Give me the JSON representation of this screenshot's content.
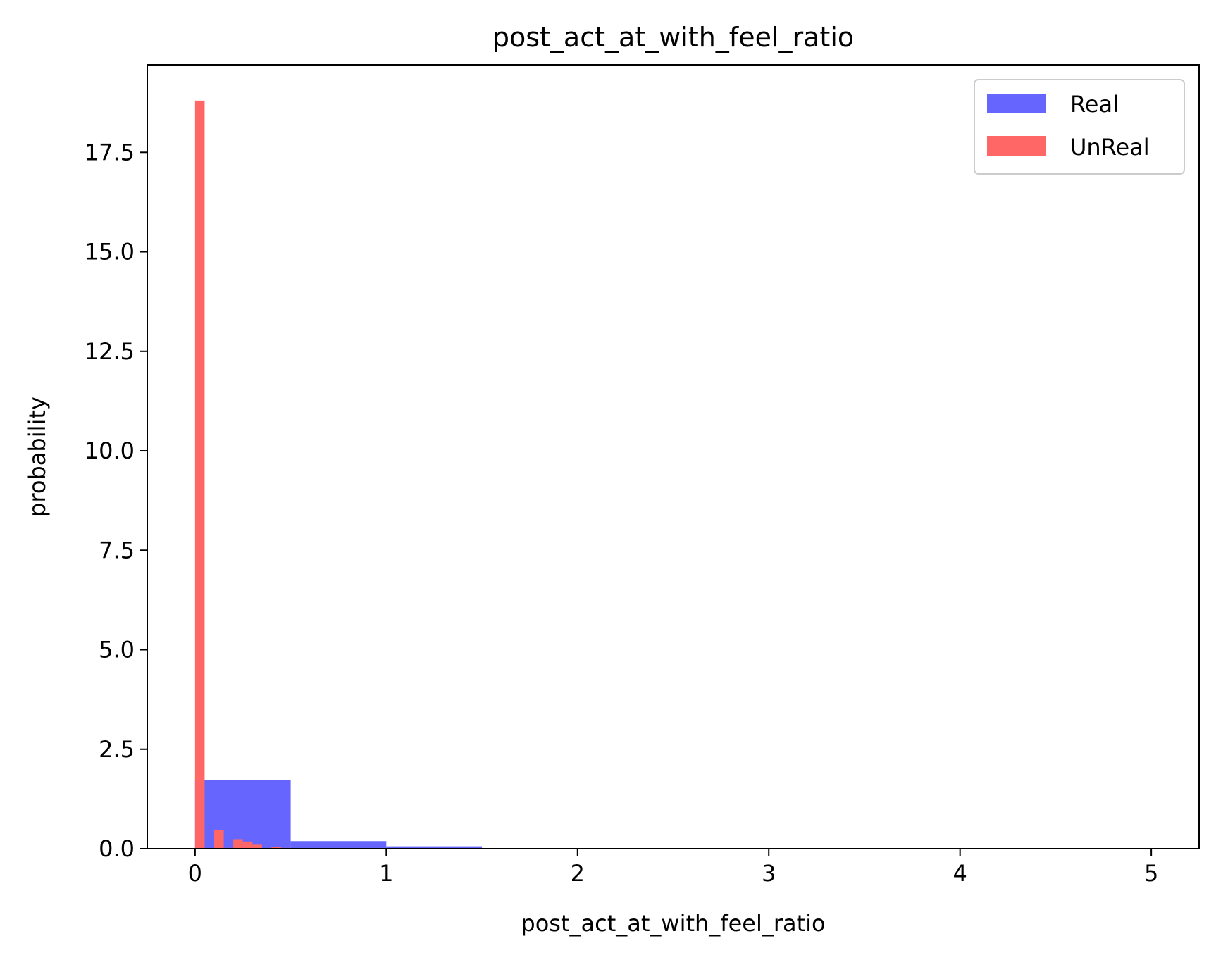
{
  "chart_data": {
    "type": "bar",
    "title": "post_act_at_with_feel_ratio",
    "xlabel": "post_act_at_with_feel_ratio",
    "ylabel": "probability",
    "xlim": [
      -0.25,
      5.25
    ],
    "ylim": [
      0,
      19.7
    ],
    "x_ticks": [
      "0",
      "1",
      "2",
      "3",
      "4",
      "5"
    ],
    "x_tick_values": [
      0,
      1,
      2,
      3,
      4,
      5
    ],
    "y_ticks": [
      "0.0",
      "2.5",
      "5.0",
      "7.5",
      "10.0",
      "12.5",
      "15.0",
      "17.5"
    ],
    "y_tick_values": [
      0,
      2.5,
      5,
      7.5,
      10,
      12.5,
      15,
      17.5
    ],
    "grid": false,
    "legend_position": "top-right",
    "series": [
      {
        "name": "Real",
        "color": "#6666ff",
        "bins": [
          {
            "x0": 0.0,
            "x1": 0.5,
            "value": 1.72
          },
          {
            "x0": 0.5,
            "x1": 1.0,
            "value": 0.19
          },
          {
            "x0": 1.0,
            "x1": 1.5,
            "value": 0.06
          },
          {
            "x0": 1.5,
            "x1": 2.0,
            "value": 0.01
          },
          {
            "x0": 2.0,
            "x1": 2.5,
            "value": 0.005
          },
          {
            "x0": 2.5,
            "x1": 3.0,
            "value": 0.003
          },
          {
            "x0": 3.0,
            "x1": 3.5,
            "value": 0.002
          },
          {
            "x0": 3.5,
            "x1": 4.0,
            "value": 0.002
          },
          {
            "x0": 4.0,
            "x1": 4.5,
            "value": 0.001
          },
          {
            "x0": 4.5,
            "x1": 5.0,
            "value": 0.001
          }
        ]
      },
      {
        "name": "UnReal",
        "color": "#ff6666",
        "bins": [
          {
            "x0": 0.0,
            "x1": 0.05,
            "value": 18.8
          },
          {
            "x0": 0.05,
            "x1": 0.1,
            "value": 0.0
          },
          {
            "x0": 0.1,
            "x1": 0.15,
            "value": 0.47
          },
          {
            "x0": 0.15,
            "x1": 0.2,
            "value": 0.02
          },
          {
            "x0": 0.2,
            "x1": 0.25,
            "value": 0.24
          },
          {
            "x0": 0.25,
            "x1": 0.3,
            "value": 0.18
          },
          {
            "x0": 0.3,
            "x1": 0.35,
            "value": 0.1
          },
          {
            "x0": 0.35,
            "x1": 0.4,
            "value": 0.01
          },
          {
            "x0": 0.4,
            "x1": 0.45,
            "value": 0.04
          },
          {
            "x0": 0.45,
            "x1": 0.5,
            "value": 0.02
          }
        ]
      }
    ]
  }
}
